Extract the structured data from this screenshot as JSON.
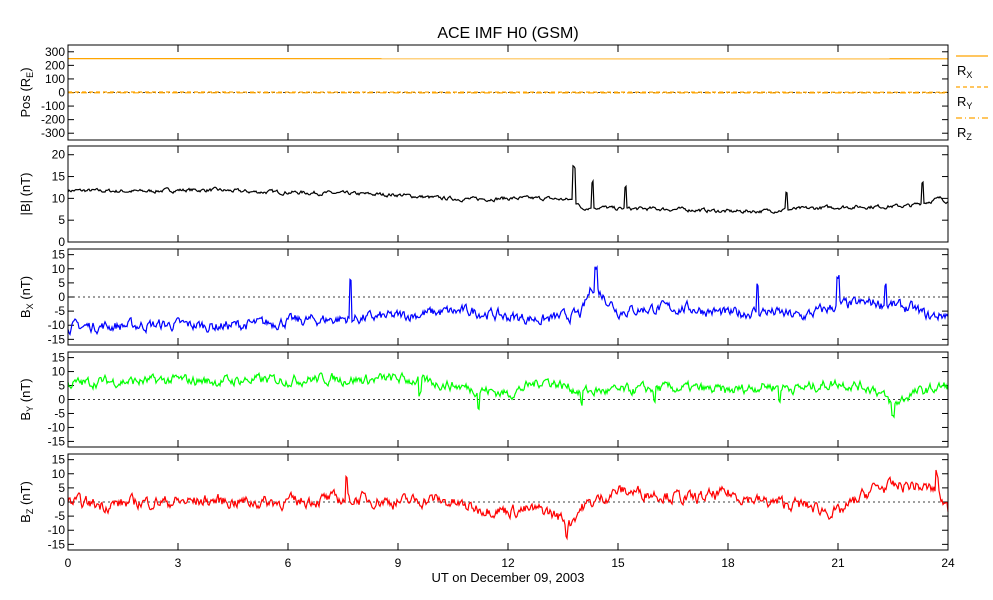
{
  "chart_data": {
    "type": "line",
    "title": "ACE IMF H0 (GSM)",
    "xlabel": "UT on December 09, 2003",
    "xlim": [
      0,
      24
    ],
    "x_ticks": [
      "0",
      "3",
      "6",
      "9",
      "12",
      "15",
      "18",
      "21",
      "24"
    ],
    "x_tick_values": [
      0,
      3,
      6,
      9,
      12,
      15,
      18,
      21,
      24
    ],
    "panels": [
      {
        "id": "pos",
        "ylabel": "Pos (R",
        "ylabel_sub": "E",
        "ylabel_tail": ")",
        "ylim": [
          -350,
          350
        ],
        "y_ticks": [
          -300,
          -200,
          -100,
          0,
          100,
          200,
          300
        ],
        "zero_line": true,
        "series": [
          {
            "name": "R",
            "sub": "X",
            "color": "#ffa500",
            "style": "solid",
            "x": [
              0,
              24
            ],
            "y": [
              250,
              248
            ]
          },
          {
            "name": "R",
            "sub": "Y",
            "color": "#ffa500",
            "style": "dash",
            "x": [
              0,
              24
            ],
            "y": [
              4,
              2
            ]
          },
          {
            "name": "R",
            "sub": "Z",
            "color": "#ffa500",
            "style": "dashdot",
            "x": [
              0,
              24
            ],
            "y": [
              -2,
              -3
            ]
          }
        ]
      },
      {
        "id": "bmag",
        "ylabel": "|B| (nT)",
        "ylim": [
          0,
          22
        ],
        "y_ticks": [
          0,
          5,
          10,
          15,
          20
        ],
        "zero_line": false,
        "series": [
          {
            "color": "#000000",
            "noise": 0.35,
            "spikes": [
              [
                13.8,
                8
              ],
              [
                14.3,
                6
              ],
              [
                15.2,
                5
              ],
              [
                19.6,
                4
              ],
              [
                23.3,
                5
              ]
            ],
            "x": [
              0,
              1,
              2,
              3,
              4,
              5,
              6,
              7,
              8,
              9,
              10,
              11,
              12,
              13,
              13.8,
              14,
              14.5,
              15,
              16,
              17,
              18,
              19,
              20,
              21,
              22,
              23,
              23.8,
              24
            ],
            "y": [
              11.8,
              11.7,
              11.6,
              11.9,
              11.9,
              11.5,
              11.4,
              11.2,
              11.0,
              10.8,
              10.1,
              9.8,
              10.0,
              10.0,
              9.6,
              7.8,
              8.0,
              7.6,
              7.6,
              7.4,
              7.0,
              7.1,
              7.6,
              8.0,
              8.1,
              8.3,
              10.0,
              9.3
            ]
          }
        ]
      },
      {
        "id": "bx",
        "ylabel": "B",
        "ylabel_sub": "X",
        "ylabel_tail": " (nT)",
        "ylim": [
          -17,
          17
        ],
        "y_ticks": [
          -15,
          -10,
          -5,
          0,
          5,
          10,
          15
        ],
        "zero_line": true,
        "series": [
          {
            "color": "#0000ff",
            "noise": 1.6,
            "spikes": [
              [
                7.7,
                13
              ],
              [
                14.4,
                8
              ],
              [
                18.8,
                9
              ],
              [
                21.0,
                9
              ],
              [
                22.3,
                8
              ]
            ],
            "x": [
              0,
              1,
              2,
              3,
              4,
              5,
              6,
              7,
              8,
              9,
              10,
              11,
              12,
              13,
              14,
              14.3,
              14.8,
              15,
              16,
              17,
              18,
              19,
              20,
              21,
              22,
              23,
              23.5,
              24
            ],
            "y": [
              -10.5,
              -10.3,
              -10.0,
              -9.8,
              -10.3,
              -9.8,
              -8.6,
              -8.0,
              -7.5,
              -6.8,
              -5.5,
              -5.0,
              -7.0,
              -8.0,
              -6.0,
              4.0,
              -2.0,
              -5.0,
              -4.0,
              -4.0,
              -6.0,
              -5.0,
              -7.0,
              -3.0,
              -2.0,
              -4.0,
              -7.0,
              -6.0
            ]
          }
        ]
      },
      {
        "id": "by",
        "ylabel": "B",
        "ylabel_sub": "Y",
        "ylabel_tail": " (nT)",
        "ylim": [
          -17,
          17
        ],
        "y_ticks": [
          -15,
          -10,
          -5,
          0,
          5,
          10,
          15
        ],
        "zero_line": true,
        "series": [
          {
            "color": "#00ff00",
            "noise": 1.5,
            "spikes": [
              [
                9.6,
                -6
              ],
              [
                11.2,
                -6
              ],
              [
                14.0,
                -5
              ],
              [
                16.0,
                -5
              ],
              [
                19.4,
                -5
              ],
              [
                22.5,
                -5
              ]
            ],
            "x": [
              0,
              1,
              2,
              3,
              4,
              5,
              6,
              7,
              8,
              9,
              10,
              11,
              12,
              13,
              14,
              15,
              16,
              17,
              18,
              19,
              20,
              21,
              22,
              22.5,
              23,
              24
            ],
            "y": [
              5.5,
              6.5,
              6.5,
              7.0,
              6.5,
              7.0,
              7.0,
              7.5,
              7.0,
              7.5,
              6.0,
              4.0,
              2.0,
              7.0,
              3.0,
              3.0,
              4.0,
              4.0,
              3.0,
              5.0,
              4.0,
              6.0,
              4.0,
              -2.0,
              2.0,
              5.0
            ]
          }
        ]
      },
      {
        "id": "bz",
        "ylabel": "B",
        "ylabel_sub": "Z",
        "ylabel_tail": " (nT)",
        "ylim": [
          -17,
          17
        ],
        "y_ticks": [
          -15,
          -10,
          -5,
          0,
          5,
          10,
          15
        ],
        "zero_line": true,
        "series": [
          {
            "color": "#ff0000",
            "noise": 1.8,
            "spikes": [
              [
                7.6,
                7
              ],
              [
                13.6,
                -5
              ],
              [
                23.7,
                6
              ]
            ],
            "x": [
              0,
              1,
              2,
              3,
              4,
              5,
              6,
              7,
              8,
              9,
              10,
              11,
              12,
              13,
              13.7,
              14,
              15,
              16,
              17,
              18,
              19,
              20,
              21,
              22,
              23,
              23.7,
              24
            ],
            "y": [
              0.0,
              -1.0,
              0.0,
              0.0,
              0.5,
              0.0,
              0.0,
              1.0,
              1.0,
              0.0,
              1.0,
              -2.0,
              -3.0,
              -3.0,
              -7.0,
              -2.0,
              4.0,
              3.0,
              1.0,
              3.0,
              0.0,
              -1.0,
              -4.0,
              5.0,
              6.0,
              4.0,
              -3.0
            ]
          }
        ]
      }
    ]
  }
}
